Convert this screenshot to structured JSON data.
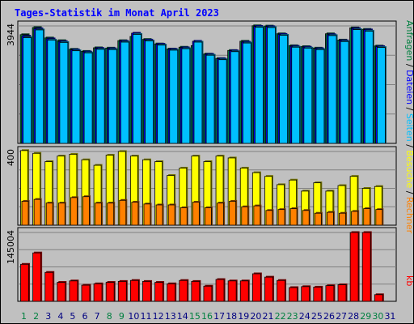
{
  "chart_data": {
    "type": "bar",
    "title": "Tages-Statistik im Monat April 2023",
    "x": [
      "1",
      "2",
      "3",
      "4",
      "5",
      "6",
      "7",
      "8",
      "9",
      "10",
      "11",
      "12",
      "13",
      "14",
      "15",
      "16",
      "17",
      "18",
      "19",
      "20",
      "21",
      "22",
      "23",
      "24",
      "25",
      "26",
      "27",
      "28",
      "29",
      "30",
      "31"
    ],
    "weekend_days": [
      "1",
      "2",
      "8",
      "9",
      "15",
      "16",
      "22",
      "23",
      "29",
      "30"
    ],
    "panels": [
      {
        "max_label": "3944",
        "ylim": [
          0,
          3944
        ],
        "series": [
          {
            "name": "Anfragen",
            "color": "#008040",
            "values": [
              3650,
              3890,
              3540,
              3450,
              3160,
              3090,
              3210,
              3200,
              3450,
              3590,
              3490,
              3340,
              3170,
              3230,
              3280,
              3000,
              2850,
              3120,
              3430,
              3950,
              3940,
              3680,
              3280,
              3250,
              3200,
              3680,
              3470,
              3880,
              3830,
              3270,
              0
            ]
          },
          {
            "name": "Dateien",
            "color": "#0000ff",
            "values": [
              3600,
              3850,
              3510,
              3420,
              3140,
              3070,
              3190,
              3180,
              3430,
              3700,
              3470,
              3330,
              3160,
              3210,
              3430,
              2990,
              2840,
              3110,
              3400,
              3930,
              3920,
              3660,
              3260,
              3230,
              3180,
              3650,
              3450,
              3860,
              3810,
              3250,
              0
            ]
          },
          {
            "name": "Seiten",
            "color": "#00c0ff",
            "values": [
              3550,
              3810,
              3470,
              3390,
              3110,
              3040,
              3160,
              3150,
              3400,
              3660,
              3440,
              3300,
              3130,
              3180,
              3400,
              2960,
              2810,
              3080,
              3370,
              3900,
              3890,
              3630,
              3230,
              3200,
              3150,
              3620,
              3420,
              3820,
              3770,
              3220,
              0
            ]
          }
        ]
      },
      {
        "max_label": "400",
        "ylim": [
          0,
          400
        ],
        "series": [
          {
            "name": "Besuche",
            "color": "#ffff00",
            "values": [
              405,
              390,
              345,
              375,
              385,
              355,
              325,
              380,
              400,
              375,
              355,
              345,
              270,
              310,
              375,
              345,
              375,
              365,
              310,
              285,
              265,
              220,
              245,
              185,
              230,
              185,
              215,
              265,
              200,
              210,
              0
            ]
          },
          {
            "name": "Rechner",
            "color": "#ff8000",
            "values": [
              130,
              140,
              120,
              120,
              150,
              155,
              120,
              120,
              135,
              125,
              115,
              110,
              110,
              95,
              125,
              95,
              120,
              130,
              100,
              105,
              80,
              85,
              90,
              80,
              65,
              70,
              65,
              75,
              90,
              85,
              0
            ]
          }
        ]
      },
      {
        "max_label": "145004",
        "ylim": [
          0,
          145004
        ],
        "series": [
          {
            "name": "kb",
            "color": "#ff0000",
            "values": [
              78000,
              102000,
              61000,
              40000,
              43000,
              34000,
              37000,
              40000,
              42000,
              44000,
              42000,
              40000,
              37000,
              44000,
              42000,
              32000,
              46000,
              43000,
              43000,
              58000,
              51000,
              44000,
              29000,
              31000,
              30000,
              33000,
              35000,
              145004,
              145004,
              14000,
              0
            ]
          }
        ]
      }
    ],
    "right_legend": [
      {
        "text": "Anfragen",
        "color": "#008040"
      },
      {
        "text": "/",
        "color": "#000000"
      },
      {
        "text": "Dateien",
        "color": "#0000ff"
      },
      {
        "text": "/",
        "color": "#000000"
      },
      {
        "text": "Seiten",
        "color": "#00c0ff"
      },
      {
        "text": "/",
        "color": "#000000"
      },
      {
        "text": "Besuche",
        "color": "#ffff00"
      },
      {
        "text": "/",
        "color": "#000000"
      },
      {
        "text": "Rechner",
        "color": "#ff8000"
      },
      {
        "text": "kb",
        "color": "#ff0000"
      }
    ]
  }
}
